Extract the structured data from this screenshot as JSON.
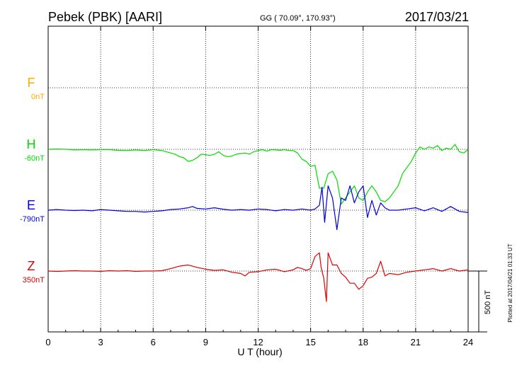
{
  "header": {
    "station": "Pebek (PBK)  [AARI]",
    "coords": "GG ( 70.09°, 170.93°)",
    "date": "2017/03/21"
  },
  "plotted_note": "Plotted at 2017/04/21 01:33 UT",
  "scale_label": "500 nT",
  "chart_data": {
    "type": "line",
    "xlabel": "U T (hour)",
    "ylabel": "",
    "xlim": [
      0,
      24
    ],
    "x_ticks": [
      0,
      3,
      6,
      9,
      12,
      15,
      18,
      21,
      24
    ],
    "x_tick_labels": [
      "0",
      "3",
      "6",
      "9",
      "12",
      "15",
      "18",
      "21",
      "24"
    ],
    "grid": true,
    "scale_bar_nT": 500,
    "series": [
      {
        "name": "F",
        "baseline_label": "0nT",
        "color": "#ffaa00",
        "x": [],
        "y": []
      },
      {
        "name": "H",
        "baseline_label": "-60nT",
        "color": "#00dd00",
        "x": [
          0,
          0.5,
          1,
          1.5,
          2,
          2.5,
          3,
          3.5,
          4,
          4.5,
          5,
          5.5,
          6,
          6.5,
          7,
          7.25,
          7.5,
          7.75,
          8,
          8.25,
          8.5,
          8.75,
          9,
          9.25,
          9.5,
          9.75,
          10,
          10.25,
          10.5,
          10.75,
          11,
          11.25,
          11.5,
          11.75,
          12,
          12.25,
          12.5,
          12.75,
          13,
          13.25,
          13.5,
          13.75,
          14,
          14.25,
          14.5,
          14.75,
          15,
          15.25,
          15.5,
          15.75,
          16,
          16.25,
          16.5,
          16.75,
          17,
          17.25,
          17.5,
          17.75,
          18,
          18.25,
          18.5,
          18.75,
          19,
          19.25,
          19.5,
          19.75,
          20,
          20.25,
          20.5,
          20.75,
          21,
          21.25,
          21.5,
          21.75,
          22,
          22.25,
          22.5,
          22.75,
          23,
          23.25,
          23.5,
          23.75,
          24
        ],
        "y": [
          0,
          3,
          0,
          -5,
          -3,
          -5,
          -3,
          -3,
          -8,
          -10,
          -5,
          -10,
          -3,
          -10,
          -30,
          -40,
          -60,
          -70,
          -100,
          -90,
          -70,
          -40,
          -45,
          -50,
          -40,
          -20,
          -50,
          -60,
          -55,
          -40,
          -35,
          -30,
          -40,
          -20,
          -10,
          -3,
          -15,
          -3,
          -5,
          -8,
          -3,
          -10,
          -10,
          -30,
          -80,
          -100,
          -140,
          -130,
          -320,
          -320,
          -200,
          -180,
          -250,
          -450,
          -400,
          -350,
          -300,
          -400,
          -420,
          -350,
          -300,
          -350,
          -420,
          -430,
          -400,
          -350,
          -300,
          -200,
          -150,
          -100,
          -30,
          20,
          0,
          20,
          10,
          30,
          -10,
          10,
          0,
          40,
          -20,
          -30,
          0
        ]
      },
      {
        "name": "E",
        "baseline_label": "-790nT",
        "color": "#0000dd",
        "x": [
          0,
          0.5,
          1,
          1.5,
          2,
          2.5,
          3,
          3.5,
          4,
          4.5,
          5,
          5.5,
          6,
          6.5,
          7,
          7.5,
          8,
          8.25,
          8.5,
          9,
          9.5,
          10,
          10.5,
          11,
          11.5,
          12,
          12.5,
          13,
          13.5,
          14,
          14.5,
          15,
          15.25,
          15.5,
          15.65,
          15.8,
          16,
          16.25,
          16.5,
          16.75,
          17,
          17.25,
          17.5,
          17.75,
          18,
          18.25,
          18.5,
          18.75,
          19,
          19.25,
          19.5,
          20,
          20.5,
          21,
          21.5,
          22,
          22.5,
          23,
          23.5,
          24
        ],
        "y": [
          0,
          5,
          0,
          -3,
          0,
          -5,
          5,
          0,
          -5,
          -10,
          -10,
          -15,
          -10,
          -5,
          5,
          10,
          20,
          30,
          15,
          10,
          20,
          8,
          0,
          5,
          0,
          10,
          5,
          -5,
          5,
          0,
          10,
          0,
          10,
          40,
          190,
          -100,
          200,
          100,
          -160,
          100,
          80,
          200,
          60,
          150,
          200,
          -60,
          80,
          -40,
          60,
          20,
          0,
          0,
          10,
          20,
          -5,
          20,
          -10,
          30,
          -10,
          -20
        ]
      },
      {
        "name": "Z",
        "baseline_label": "350nT",
        "color": "#dd0000",
        "x": [
          0,
          0.5,
          1,
          1.5,
          2,
          2.5,
          3,
          3.5,
          4,
          4.5,
          5,
          5.5,
          6,
          6.5,
          7,
          7.5,
          8,
          8.5,
          9,
          9.5,
          10,
          10.5,
          11,
          11.25,
          11.5,
          12,
          12.5,
          13,
          13.5,
          14,
          14.25,
          14.5,
          14.75,
          15,
          15.25,
          15.5,
          15.6,
          15.75,
          15.9,
          16,
          16.25,
          16.5,
          16.75,
          17,
          17.25,
          17.5,
          17.75,
          18,
          18.25,
          18.5,
          18.75,
          19,
          19.25,
          19.5,
          20,
          20.5,
          21,
          21.5,
          22,
          22.5,
          23,
          23.5,
          24
        ],
        "y": [
          0,
          -3,
          0,
          3,
          0,
          0,
          -3,
          3,
          0,
          3,
          -3,
          0,
          0,
          3,
          20,
          40,
          50,
          30,
          15,
          5,
          10,
          -10,
          -20,
          -40,
          -10,
          -5,
          10,
          15,
          -5,
          10,
          30,
          20,
          5,
          20,
          120,
          150,
          30,
          -60,
          -250,
          150,
          50,
          50,
          -20,
          -50,
          -100,
          -100,
          -150,
          -120,
          -60,
          -50,
          -20,
          80,
          -40,
          -20,
          -30,
          -10,
          0,
          10,
          20,
          0,
          20,
          0,
          10
        ]
      }
    ]
  }
}
